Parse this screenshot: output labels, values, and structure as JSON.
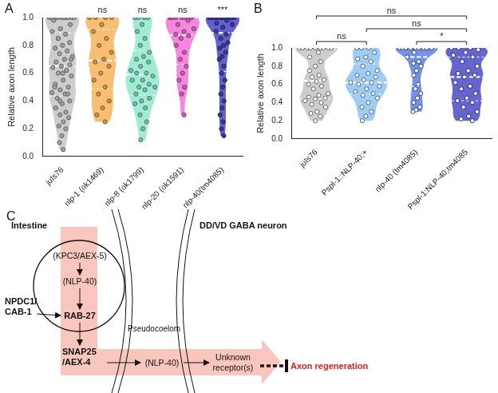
{
  "chart_data": [
    {
      "type": "violin",
      "title": "A",
      "ylabel": "Relative axon length",
      "marker": "filled",
      "ylim": [
        0,
        1
      ],
      "yticks": [
        {
          "value": 0,
          "label": "0.0"
        },
        {
          "value": 0.2,
          "label": "0.2"
        },
        {
          "value": 0.4,
          "label": "0.4"
        },
        {
          "value": 0.6,
          "label": "0.6"
        },
        {
          "value": 0.8,
          "label": "0.8"
        },
        {
          "value": 1,
          "label": "1.0"
        }
      ],
      "categories": [
        "juIs76",
        "nlp-1 (ok1469)",
        "nlp-8 (ok1799)",
        "nlp-20 (ok1591)",
        "nlp-40(tm4085)"
      ],
      "colors": [
        "#c4c4c4",
        "#f7b35a",
        "#8fe8cc",
        "#f272d8",
        "#4646c0"
      ],
      "values": [
        [
          1,
          1,
          1,
          1,
          1,
          1,
          1,
          1,
          1,
          1,
          0.98,
          0.95,
          0.92,
          0.9,
          0.88,
          0.85,
          0.82,
          0.8,
          0.78,
          0.76,
          0.74,
          0.72,
          0.7,
          0.68,
          0.66,
          0.65,
          0.64,
          0.62,
          0.6,
          0.58,
          0.55,
          0.52,
          0.5,
          0.48,
          0.46,
          0.45,
          0.42,
          0.4,
          0.38,
          0.35,
          0.32,
          0.3,
          0.28,
          0.25,
          0.22,
          0.2,
          0.15,
          0.1,
          0.05,
          0.85,
          0.7,
          0.6,
          0.5,
          0.45,
          0.4
        ],
        [
          1,
          1,
          1,
          1,
          0.95,
          0.9,
          0.85,
          0.8,
          0.75,
          0.7,
          0.68,
          0.65,
          0.6,
          0.55,
          0.5,
          0.45,
          0.4,
          0.35,
          0.3,
          0.25
        ],
        [
          1,
          1,
          1,
          1,
          0.95,
          0.9,
          0.85,
          0.8,
          0.75,
          0.72,
          0.7,
          0.68,
          0.65,
          0.62,
          0.6,
          0.6,
          0.58,
          0.55,
          0.55,
          0.52,
          0.5,
          0.5,
          0.48,
          0.45,
          0.42,
          0.4,
          0.38,
          0.35,
          0.3,
          0.25,
          0.2,
          0.12
        ],
        [
          1,
          1,
          1,
          1,
          1,
          1,
          0.98,
          0.95,
          0.92,
          0.9,
          0.88,
          0.87,
          0.85,
          0.8,
          0.75,
          0.7,
          0.65,
          0.6,
          0.55,
          0.5,
          0.45,
          0.3
        ],
        [
          1,
          1,
          1,
          1,
          1,
          1,
          1,
          1,
          1,
          1,
          1,
          1,
          1,
          1,
          0.98,
          0.96,
          0.95,
          0.93,
          0.9,
          0.88,
          0.85,
          0.82,
          0.8,
          0.78,
          0.75,
          0.72,
          0.7,
          0.65,
          0.6,
          0.55,
          0.5,
          0.45,
          0.4,
          0.35,
          0.3,
          0.25,
          0.2,
          0.15
        ]
      ],
      "annotations": [
        {
          "category": "nlp-1 (ok1469)",
          "text": "ns"
        },
        {
          "category": "nlp-8 (ok1799)",
          "text": "ns"
        },
        {
          "category": "nlp-20 (ok1591)",
          "text": "ns"
        },
        {
          "category": "nlp-40(tm4085)",
          "text": "***"
        }
      ]
    },
    {
      "type": "violin",
      "title": "B",
      "ylabel": "Relative axon length",
      "marker": "open",
      "ylim": [
        0,
        1
      ],
      "yticks": [
        {
          "value": 0,
          "label": "0.0"
        },
        {
          "value": 0.2,
          "label": "0.2"
        },
        {
          "value": 0.4,
          "label": "0.4"
        },
        {
          "value": 0.6,
          "label": "0.6"
        },
        {
          "value": 0.8,
          "label": "0.8"
        },
        {
          "value": 1,
          "label": "1.0"
        }
      ],
      "categories": [
        "juIs76",
        "Pspl-1::NLP-40;+",
        "nlp-40 (tm4085)",
        "Pspl-1:NLP-40;tm4085"
      ],
      "colors": [
        "#c4c4c4",
        "#8cc3f2",
        "#5a7fe6",
        "#4a4ac8"
      ],
      "values": [
        [
          1,
          1,
          1,
          1,
          1,
          1,
          1,
          1,
          1,
          0.95,
          0.9,
          0.85,
          0.8,
          0.75,
          0.7,
          0.68,
          0.65,
          0.63,
          0.6,
          0.58,
          0.55,
          0.5,
          0.48,
          0.46,
          0.45,
          0.44,
          0.42,
          0.4,
          0.38,
          0.35,
          0.3,
          0.28,
          0.25,
          0.2
        ],
        [
          1,
          1,
          1,
          0.95,
          0.9,
          0.88,
          0.85,
          0.8,
          0.75,
          0.72,
          0.7,
          0.68,
          0.65,
          0.62,
          0.62,
          0.6,
          0.58,
          0.55,
          0.52,
          0.5,
          0.48,
          0.45,
          0.4,
          0.35,
          0.3,
          0.25,
          0.2
        ],
        [
          1,
          1,
          1,
          1,
          1,
          1,
          1,
          1,
          1,
          1,
          1,
          1,
          0.95,
          0.9,
          0.85,
          0.83,
          0.8,
          0.75,
          0.7,
          0.6,
          0.55,
          0.5,
          0.45,
          0.4,
          0.35,
          0.32,
          0.3
        ],
        [
          1,
          1,
          1,
          0.98,
          0.95,
          0.92,
          0.9,
          0.85,
          0.8,
          0.75,
          0.72,
          0.7,
          0.68,
          0.62,
          0.58,
          0.55,
          0.5,
          0.45,
          0.42,
          0.4,
          0.35,
          0.3,
          0.25,
          0.22,
          0.2
        ]
      ],
      "comparisons": [
        {
          "from": "juIs76",
          "to": "Pspl-1:NLP-40;tm4085",
          "text": "ns"
        },
        {
          "from": "Pspl-1::NLP-40;+",
          "to": "Pspl-1:NLP-40;tm4085",
          "text": "ns"
        },
        {
          "from": "juIs76",
          "to": "Pspl-1::NLP-40;+",
          "text": "ns"
        },
        {
          "from": "nlp-40 (tm4085)",
          "to": "Pspl-1:NLP-40;tm4085",
          "text": "*"
        }
      ]
    }
  ],
  "diagram": {
    "title": "C",
    "regions": {
      "intestine": "Intestine",
      "space": "Pseudocoelom",
      "neuron": "DD/VD GABA neuron"
    },
    "nodes": {
      "kpc3": [
        "(KPC3/AEX-5)"
      ],
      "nlp40a": [
        "(NLP-40)"
      ],
      "npdc1": [
        "NPDC1/",
        "CAB-1"
      ],
      "rab27": [
        "RAB-27"
      ],
      "snap25": [
        "SNAP25",
        "/AEX-4"
      ],
      "nlp40b": [
        "(NLP-40)"
      ],
      "receptor": [
        "Unknown",
        "receptor(s)"
      ],
      "outcome": [
        "Axon regeneration"
      ]
    },
    "outcome_color": "#e02020"
  }
}
